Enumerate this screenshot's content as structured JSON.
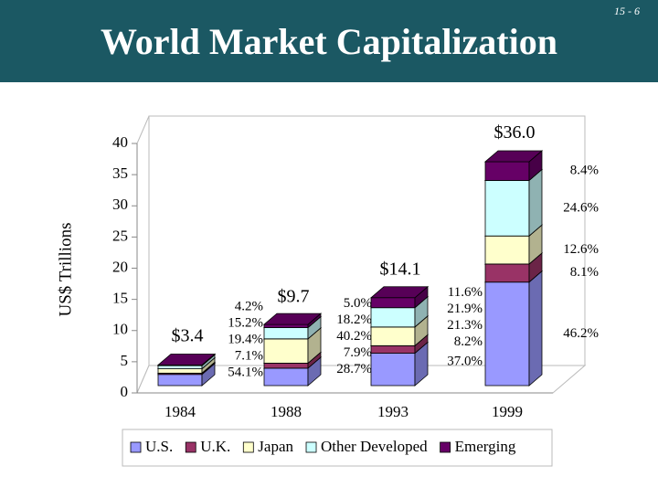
{
  "slide_number": "15 - 6",
  "chart_data": {
    "type": "stacked-bar-3d",
    "title": "World Market Capitalization",
    "y_label": "US$ Trillions",
    "categories": [
      "1984",
      "1988",
      "1993",
      "1999"
    ],
    "series": [
      {
        "name": "U.S.",
        "color": "#9999ff",
        "values": [
          1.8,
          2.8,
          5.2,
          16.6
        ],
        "share_labels": [
          "54.1%",
          "28.7%",
          "37.0%",
          "46.2%"
        ]
      },
      {
        "name": "U.K.",
        "color": "#993366",
        "values": [
          0.2,
          0.8,
          1.2,
          2.9
        ],
        "share_labels": [
          "7.1%",
          "7.9%",
          "8.2%",
          "8.1%"
        ]
      },
      {
        "name": "Japan",
        "color": "#ffffcc",
        "values": [
          0.7,
          3.9,
          3.0,
          4.5
        ],
        "share_labels": [
          "19.4%",
          "40.2%",
          "21.3%",
          "12.6%"
        ]
      },
      {
        "name": "Other Developed",
        "color": "#ccffff",
        "values": [
          0.5,
          1.8,
          3.1,
          8.9
        ],
        "share_labels": [
          "15.2%",
          "18.2%",
          "21.9%",
          "24.6%"
        ]
      },
      {
        "name": "Emerging",
        "color": "#660066",
        "values": [
          0.1,
          0.5,
          1.6,
          3.0
        ],
        "share_labels": [
          "4.2%",
          "5.0%",
          "11.6%",
          "8.4%"
        ]
      }
    ],
    "totals": [
      3.4,
      9.7,
      14.1,
      36.0
    ],
    "total_labels": [
      "$3.4",
      "$9.7",
      "$14.1",
      "$36.0"
    ],
    "ylim": [
      0,
      40
    ],
    "yticks": [
      0,
      5,
      10,
      15,
      20,
      25,
      30,
      35,
      40
    ],
    "legend": "bottom"
  }
}
